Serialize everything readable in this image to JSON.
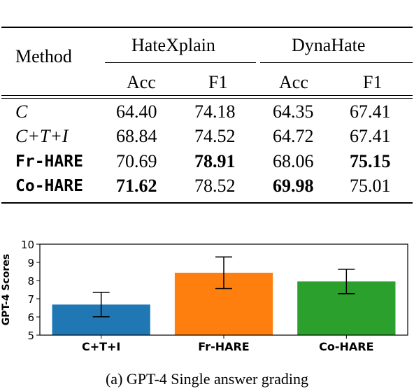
{
  "table": {
    "method_header": "Method",
    "groups": [
      "HateXplain",
      "DynaHate"
    ],
    "subheaders": [
      "Acc",
      "F1",
      "Acc",
      "F1"
    ],
    "rows": [
      {
        "method": "C",
        "style": "italic",
        "values": [
          "64.40",
          "74.18",
          "64.35",
          "67.41"
        ],
        "bold": [
          false,
          false,
          false,
          false
        ]
      },
      {
        "method": "C+T+I",
        "style": "italic",
        "values": [
          "68.84",
          "74.52",
          "64.72",
          "67.41"
        ],
        "bold": [
          false,
          false,
          false,
          false
        ]
      },
      {
        "method": "Fr-HARE",
        "style": "mono",
        "values": [
          "70.69",
          "78.91",
          "68.06",
          "75.15"
        ],
        "bold": [
          false,
          true,
          false,
          true
        ]
      },
      {
        "method": "Co-HARE",
        "style": "mono",
        "values": [
          "71.62",
          "78.52",
          "69.98",
          "75.01"
        ],
        "bold": [
          true,
          false,
          true,
          false
        ]
      }
    ]
  },
  "chart_data": {
    "type": "bar",
    "categories": [
      "C+T+I",
      "Fr-HARE",
      "Co-HARE"
    ],
    "values": [
      6.68,
      8.43,
      7.95
    ],
    "error": [
      0.67,
      0.87,
      0.67
    ],
    "colors": [
      "#1f77b4",
      "#ff7f0e",
      "#2ca02c"
    ],
    "title": "",
    "xlabel": "",
    "ylabel": "GPT-4 Scores",
    "ylim": [
      5,
      10
    ],
    "yticks": [
      "5",
      "6",
      "7",
      "8",
      "9",
      "10"
    ]
  },
  "caption": "(a) GPT-4 Single answer grading"
}
